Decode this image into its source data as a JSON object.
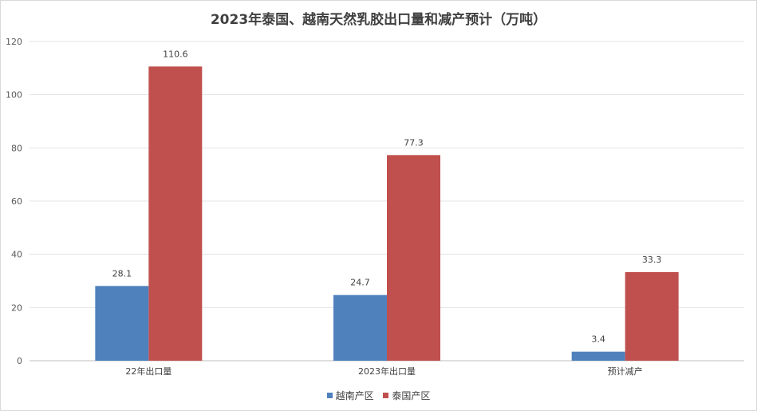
{
  "chart_data": {
    "type": "bar",
    "title": "2023年泰国、越南天然乳胶出口量和减产预计（万吨）",
    "categories": [
      "22年出口量",
      "2023年出口量",
      "预计减产"
    ],
    "series": [
      {
        "name": "越南产区",
        "color": "#4f81bd",
        "values": [
          28.1,
          24.7,
          3.4
        ],
        "labels": [
          "28.1",
          "24.7",
          "3.4"
        ]
      },
      {
        "name": "泰国产区",
        "color": "#c0504d",
        "values": [
          110.6,
          77.3,
          33.3
        ],
        "labels": [
          "110.6",
          "77.3",
          "33.3"
        ]
      }
    ],
    "ylim": [
      0,
      120
    ],
    "yticks": [
      "0",
      "20",
      "40",
      "60",
      "80",
      "100",
      "120"
    ],
    "grid": true,
    "legend_position": "bottom"
  }
}
